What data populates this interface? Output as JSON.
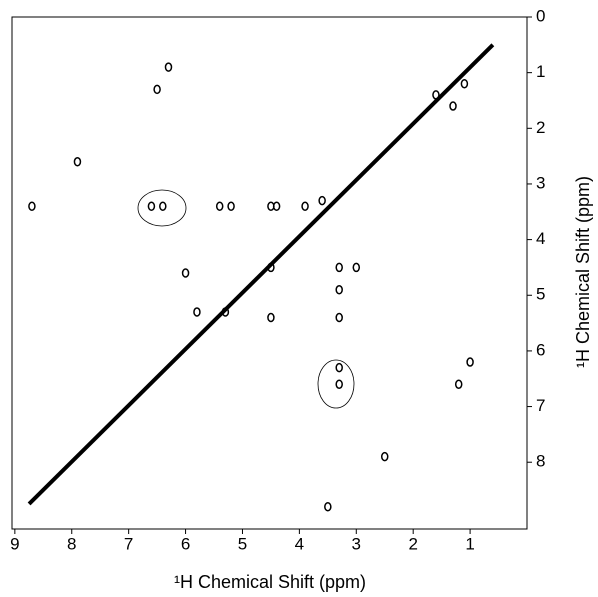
{
  "chart_data": {
    "type": "contour",
    "xlabel": "¹H Chemical Shift (ppm)",
    "ylabel": "¹H Chemical Shift (ppm)",
    "xlim": [
      9.05,
      0
    ],
    "xticks": [
      9,
      8,
      7,
      6,
      5,
      4,
      3,
      2,
      1
    ],
    "ylim": [
      0,
      9.2
    ],
    "yticks": [
      0,
      1,
      2,
      3,
      4,
      5,
      6,
      7,
      8
    ],
    "color": "#000000",
    "diagonal": {
      "x": [
        8.75,
        0.6
      ],
      "y": [
        8.75,
        0.5
      ]
    },
    "peaks": {
      "x": [
        6.6,
        6.4,
        3.3,
        3.3,
        5.4,
        5.2,
        4.5,
        4.4,
        3.9,
        3.3,
        3.3,
        3.3,
        3.0,
        5.3,
        4.5,
        4.5,
        8.7,
        6.3,
        6.5,
        7.9,
        2.5,
        3.5,
        1.0,
        1.2,
        3.6,
        1.6,
        1.3,
        1.1,
        6.0,
        5.8
      ],
      "y": [
        3.4,
        3.4,
        6.3,
        6.6,
        3.4,
        3.4,
        3.4,
        3.4,
        3.4,
        4.5,
        4.9,
        5.4,
        4.5,
        5.3,
        4.5,
        5.4,
        3.4,
        0.9,
        1.3,
        2.6,
        7.9,
        8.8,
        6.2,
        6.6,
        3.3,
        1.4,
        1.6,
        1.2,
        4.6,
        5.3
      ]
    }
  }
}
